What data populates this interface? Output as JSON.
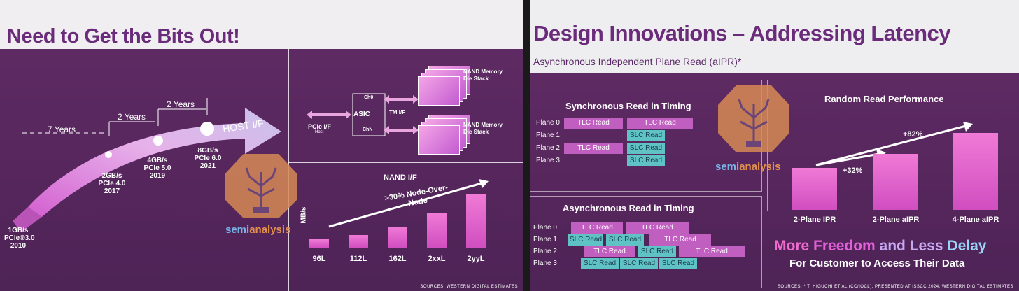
{
  "left_slide": {
    "title": "Need to Get the Bits Out!",
    "timeline": {
      "intervals": [
        "7 Years",
        "2 Years",
        "2 Years"
      ],
      "host_label": "HOST I/F",
      "milestones": [
        {
          "speed": "1GB/s",
          "gen": "PCIe®3.0",
          "year": "2010"
        },
        {
          "speed": "2GB/s",
          "gen": "PCIe 4.0",
          "year": "2017"
        },
        {
          "speed": "4GB/s",
          "gen": "PCIe 5.0",
          "year": "2019"
        },
        {
          "speed": "8GB/s",
          "gen": "PCIe 6.0",
          "year": "2021"
        }
      ]
    },
    "block_diagram": {
      "pcie_label": "PCIe I/F",
      "host_label": "Host",
      "asic_label": "ASIC",
      "ch0_label": "Ch0",
      "chn_label": "ChN",
      "tm_label": "TM I/F",
      "nand_stack_1": "NAND Memory Die Stack",
      "nand_stack_2": "NAND Memory Die Stack"
    },
    "nand_chart": {
      "title": "NAND I/F",
      "annotation": ">30% Node-Over-Node",
      "ylabel": "MB/s"
    },
    "source": "SOURCES: WESTERN DIGITAL ESTIMATES"
  },
  "right_slide": {
    "title": "Design Innovations – Addressing Latency",
    "subtitle": "Asynchronous Independent Plane Read (aIPR)*",
    "sync_panel": {
      "title": "Synchronous Read in Timing",
      "planes": [
        "Plane 0",
        "Plane 1",
        "Plane 2",
        "Plane 3"
      ],
      "blocks": [
        {
          "plane": 0,
          "label": "TLC Read",
          "kind": "tlc"
        },
        {
          "plane": 0,
          "label": "TLC Read",
          "kind": "tlc"
        },
        {
          "plane": 1,
          "label": "SLC Read",
          "kind": "slc"
        },
        {
          "plane": 2,
          "label": "TLC Read",
          "kind": "tlc"
        },
        {
          "plane": 2,
          "label": "SLC Read",
          "kind": "slc"
        },
        {
          "plane": 3,
          "label": "SLC Read",
          "kind": "slc"
        }
      ]
    },
    "async_panel": {
      "title": "Asynchronous Read in Timing",
      "planes": [
        "Plane 0",
        "Plane 1",
        "Plane 2",
        "Plane 3"
      ],
      "blocks": [
        {
          "plane": 0,
          "label": "TLC Read",
          "kind": "tlc"
        },
        {
          "plane": 0,
          "label": "TLC Read",
          "kind": "tlc"
        },
        {
          "plane": 1,
          "label": "SLC Read",
          "kind": "slc"
        },
        {
          "plane": 1,
          "label": "SLC Read",
          "kind": "slc"
        },
        {
          "plane": 1,
          "label": "TLC Read",
          "kind": "tlc"
        },
        {
          "plane": 2,
          "label": "TLC Read",
          "kind": "tlc"
        },
        {
          "plane": 2,
          "label": "SLC Read",
          "kind": "slc"
        },
        {
          "plane": 2,
          "label": "TLC Read",
          "kind": "tlc"
        },
        {
          "plane": 3,
          "label": "SLC Read",
          "kind": "slc"
        },
        {
          "plane": 3,
          "label": "SLC Read",
          "kind": "slc"
        },
        {
          "plane": 3,
          "label": "SLC Read",
          "kind": "slc"
        }
      ]
    },
    "perf_panel": {
      "title": "Random Read Performance",
      "annotation_1": "+32%",
      "annotation_2": "+82%"
    },
    "tagline": {
      "more": "More ",
      "freedom": "Freedom ",
      "and_less": "and Less ",
      "delay": "Delay"
    },
    "tagline_sub": "For Customer to Access Their Data",
    "source": "SOURCES: * T. HIGUCHI ET AL (CC/IOCL), PRESENTED AT ISSCC 2024; WESTERN DIGITAL ESTIMATES"
  },
  "watermark": {
    "text_1": "semi",
    "text_2": "analysis"
  },
  "chart_data": [
    {
      "type": "bar",
      "title": "NAND I/F",
      "ylabel": "MB/s",
      "categories": [
        "96L",
        "112L",
        "162L",
        "2xxL",
        "2yyL"
      ],
      "values": [
        1,
        1.5,
        2.6,
        4.2,
        6.5
      ]
    },
    {
      "type": "bar",
      "title": "Random Read Performance",
      "categories": [
        "2-Plane IPR",
        "2-Plane aIPR",
        "4-Plane aIPR"
      ],
      "values": [
        1.0,
        1.32,
        1.82
      ]
    }
  ]
}
